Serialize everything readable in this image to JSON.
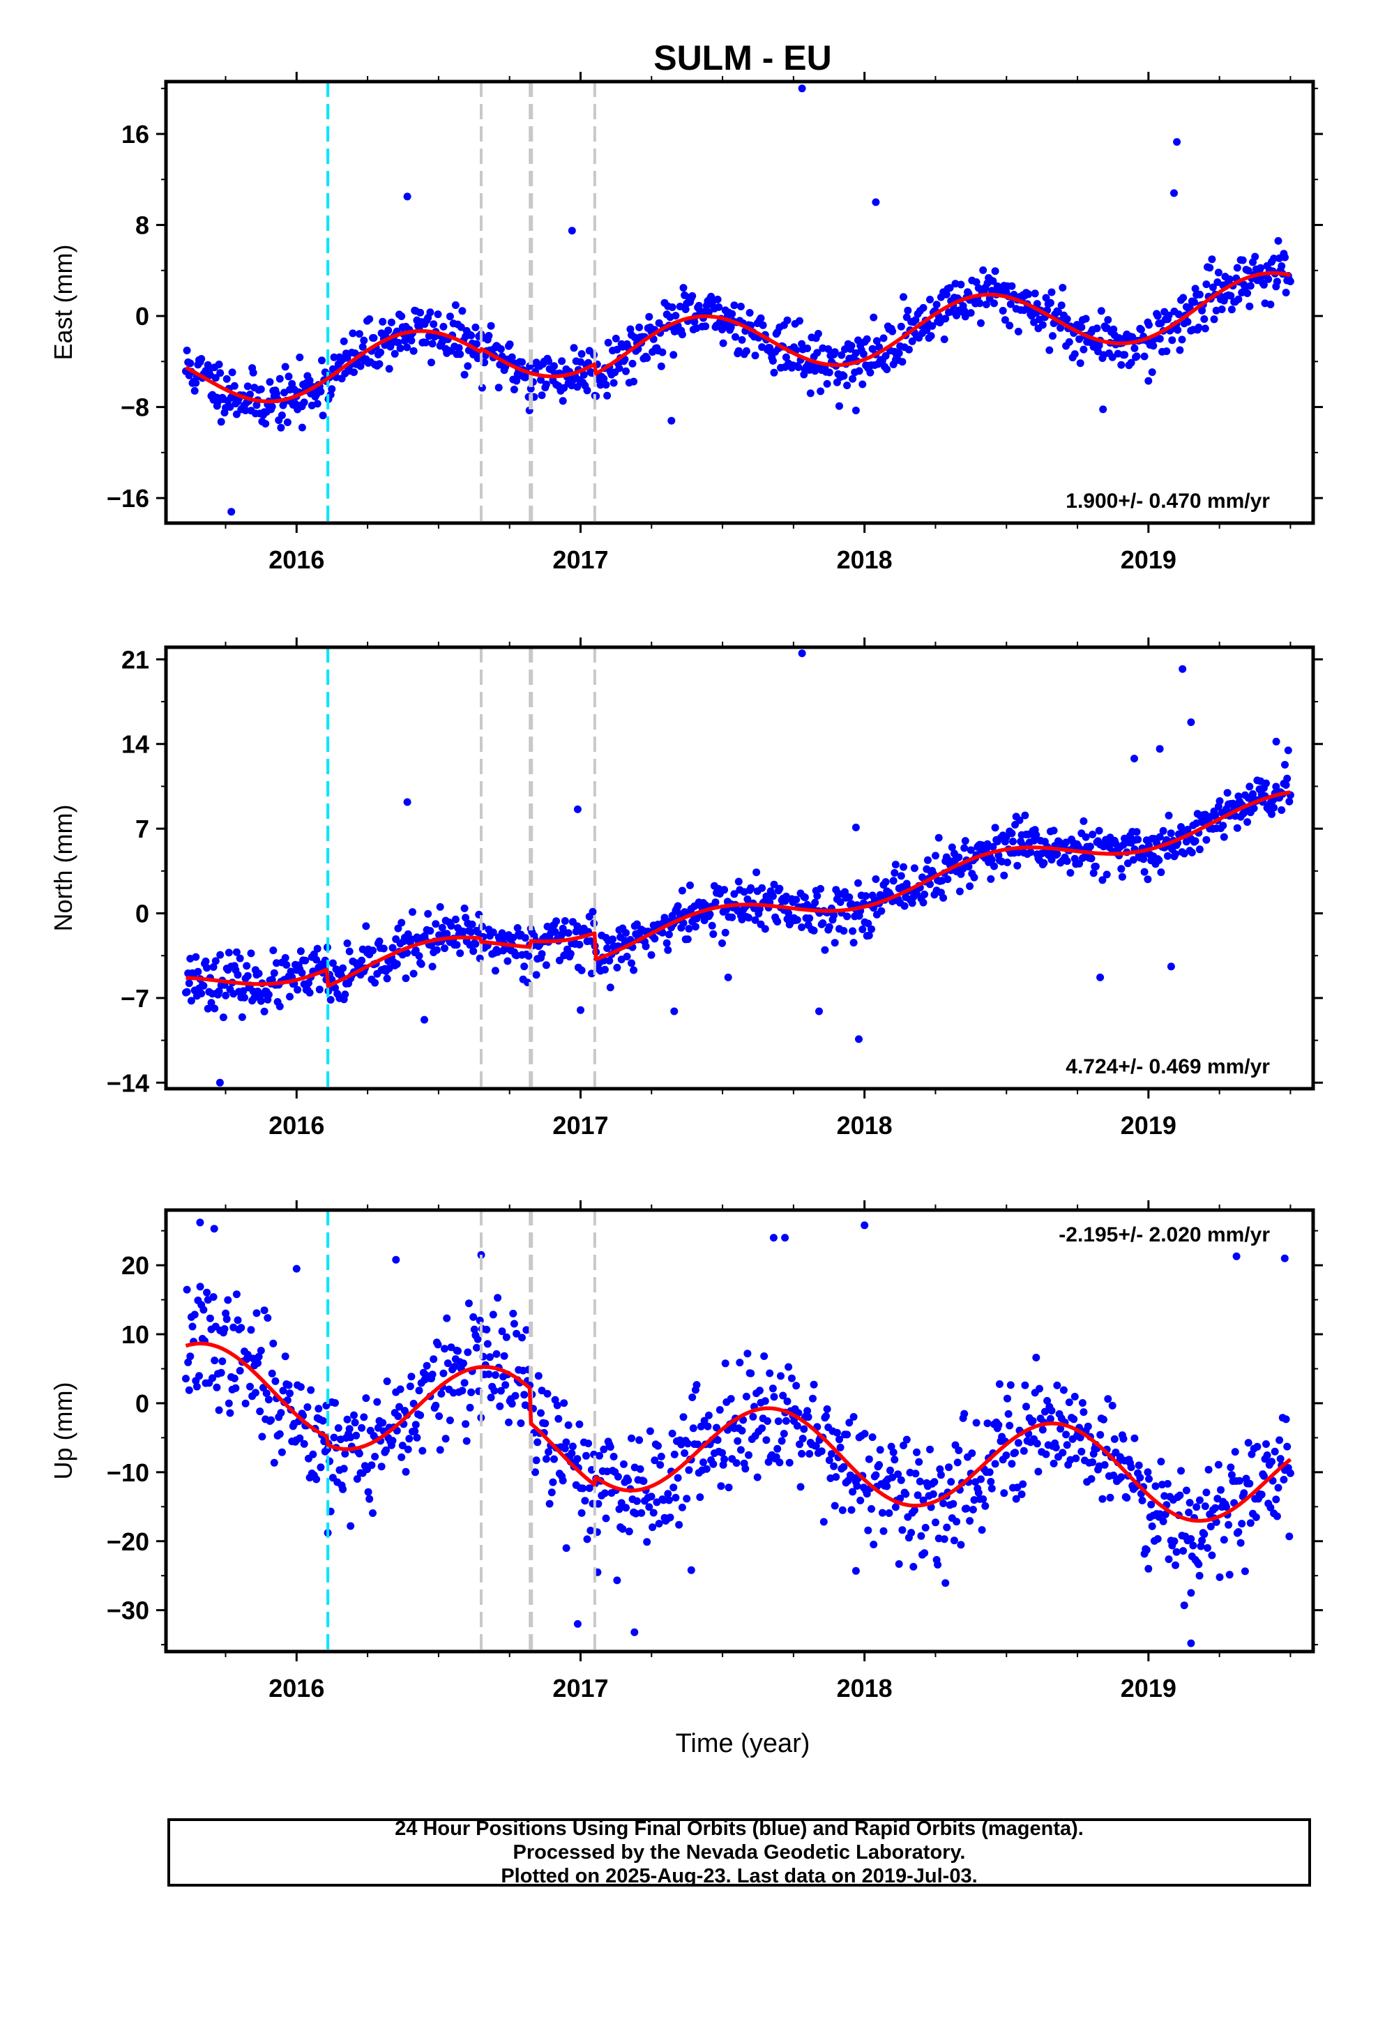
{
  "title": "SULM - EU",
  "x_axis_label": "Time (year)",
  "footer": {
    "line1": "24 Hour Positions Using Final Orbits (blue) and Rapid Orbits (magenta).",
    "line2": "Processed by the Nevada Geodetic Laboratory.",
    "line3": "Plotted on 2025-Aug-23. Last data on 2019-Jul-03."
  },
  "colors": {
    "points": "#0000ff",
    "model": "#ff0000",
    "offset_equipment": "#00e5ff",
    "offset_earthquake": "#c8c8c8"
  },
  "chart_data": [
    {
      "type": "scatter",
      "component": "East",
      "ylabel": "East (mm)",
      "rate_label": "1.900+/- 0.470 mm/yr",
      "xlim": [
        2015.54,
        2019.58
      ],
      "ylim": [
        -18.2,
        20.6
      ],
      "yticks": [
        -16,
        -8,
        0,
        8,
        16
      ],
      "xticks": [
        2016,
        2017,
        2018,
        2019
      ],
      "offset_lines": [
        {
          "x": 2016.11,
          "kind": "equipment"
        },
        {
          "x": 2016.65,
          "kind": "earthquake"
        },
        {
          "x": 2016.825,
          "kind": "earthquake"
        },
        {
          "x": 2017.05,
          "kind": "earthquake"
        }
      ],
      "trend": {
        "t0": 2015.6,
        "y0": -5.5,
        "rate": 1.9
      },
      "seasonal": [
        {
          "amp": 2.6,
          "period": 1.0,
          "peak": 2016.42
        }
      ],
      "steps": [
        {
          "x": 2016.65,
          "dy": 0.3
        },
        {
          "x": 2016.825,
          "dy": 0.0
        },
        {
          "x": 2017.05,
          "dy": -0.9
        }
      ],
      "noise_sd": 1.2,
      "outliers": [
        [
          2015.77,
          -17.2
        ],
        [
          2016.39,
          10.5
        ],
        [
          2016.02,
          -9.8
        ],
        [
          2017.78,
          20.0
        ],
        [
          2016.97,
          7.5
        ],
        [
          2017.32,
          -9.2
        ],
        [
          2018.04,
          10.0
        ],
        [
          2017.97,
          -8.3
        ],
        [
          2019.1,
          15.3
        ],
        [
          2019.09,
          10.8
        ],
        [
          2018.84,
          -8.2
        ],
        [
          2019.0,
          -5.7
        ],
        [
          2015.72,
          -7.9
        ],
        [
          2016.82,
          -8.3
        ]
      ],
      "n_points": 1000,
      "seed": 11
    },
    {
      "type": "scatter",
      "component": "North",
      "ylabel": "North (mm)",
      "rate_label": "4.724+/- 0.469 mm/yr",
      "xlim": [
        2015.54,
        2019.58
      ],
      "ylim": [
        -14.5,
        22.0
      ],
      "yticks": [
        -14,
        -7,
        0,
        7,
        14,
        21
      ],
      "xticks": [
        2016,
        2017,
        2018,
        2019
      ],
      "offset_lines": [
        {
          "x": 2016.11,
          "kind": "equipment"
        },
        {
          "x": 2016.65,
          "kind": "earthquake"
        },
        {
          "x": 2016.825,
          "kind": "earthquake"
        },
        {
          "x": 2017.05,
          "kind": "earthquake"
        }
      ],
      "trend": {
        "t0": 2015.6,
        "y0": -6.2,
        "rate": 4.724
      },
      "seasonal": [
        {
          "amp": 1.2,
          "period": 1.0,
          "peak": 2016.48
        }
      ],
      "steps": [
        {
          "x": 2016.11,
          "dy": -1.4
        },
        {
          "x": 2016.65,
          "dy": -0.3
        },
        {
          "x": 2016.825,
          "dy": 0.5
        },
        {
          "x": 2017.05,
          "dy": -2.2
        }
      ],
      "noise_sd": 1.1,
      "outliers": [
        [
          2015.73,
          -14.0
        ],
        [
          2016.39,
          9.2
        ],
        [
          2016.45,
          -8.8
        ],
        [
          2017.78,
          21.5
        ],
        [
          2016.99,
          8.6
        ],
        [
          2017.0,
          -8.0
        ],
        [
          2017.33,
          -8.1
        ],
        [
          2017.52,
          -5.3
        ],
        [
          2017.84,
          -8.1
        ],
        [
          2017.98,
          -10.4
        ],
        [
          2017.97,
          7.1
        ],
        [
          2018.83,
          -5.3
        ],
        [
          2019.08,
          -4.4
        ],
        [
          2019.12,
          20.2
        ],
        [
          2019.15,
          15.8
        ],
        [
          2019.45,
          14.2
        ],
        [
          2019.04,
          13.6
        ],
        [
          2018.95,
          12.8
        ]
      ],
      "n_points": 1000,
      "seed": 23
    },
    {
      "type": "scatter",
      "component": "Up",
      "ylabel": "Up (mm)",
      "rate_label": "-2.195+/- 2.020 mm/yr",
      "xlim": [
        2015.54,
        2019.58
      ],
      "ylim": [
        -36.0,
        28.0
      ],
      "yticks": [
        -30,
        -20,
        -10,
        0,
        10,
        20
      ],
      "xticks": [
        2016,
        2017,
        2018,
        2019
      ],
      "offset_lines": [
        {
          "x": 2016.11,
          "kind": "equipment"
        },
        {
          "x": 2016.65,
          "kind": "earthquake"
        },
        {
          "x": 2016.825,
          "kind": "earthquake"
        },
        {
          "x": 2017.05,
          "kind": "earthquake"
        }
      ],
      "trend": {
        "t0": 2015.6,
        "y0": 2.3,
        "rate": -2.195
      },
      "seasonal": [
        {
          "amp": 6.5,
          "period": 1.0,
          "peak": 2016.67
        }
      ],
      "steps": [
        {
          "x": 2016.11,
          "dy": -1.2
        },
        {
          "x": 2016.825,
          "dy": -5.0
        },
        {
          "x": 2017.05,
          "dy": 1.2
        }
      ],
      "noise_sd": 4.3,
      "outliers": [
        [
          2015.66,
          26.2
        ],
        [
          2015.71,
          25.3
        ],
        [
          2016.0,
          19.5
        ],
        [
          2016.11,
          -18.8
        ],
        [
          2016.19,
          -17.8
        ],
        [
          2016.35,
          20.8
        ],
        [
          2016.65,
          21.5
        ],
        [
          2016.95,
          -21.0
        ],
        [
          2016.99,
          -32.0
        ],
        [
          2017.06,
          -24.5
        ],
        [
          2017.19,
          -33.2
        ],
        [
          2017.39,
          -24.2
        ],
        [
          2017.68,
          24.0
        ],
        [
          2017.72,
          24.0
        ],
        [
          2017.97,
          -24.3
        ],
        [
          2018.0,
          25.8
        ],
        [
          2018.29,
          -18.0
        ],
        [
          2019.0,
          -24.0
        ],
        [
          2019.15,
          -34.8
        ],
        [
          2019.18,
          -25.0
        ],
        [
          2019.15,
          -27.5
        ],
        [
          2019.31,
          21.3
        ],
        [
          2019.48,
          21.0
        ]
      ],
      "n_points": 1000,
      "seed": 37
    }
  ]
}
